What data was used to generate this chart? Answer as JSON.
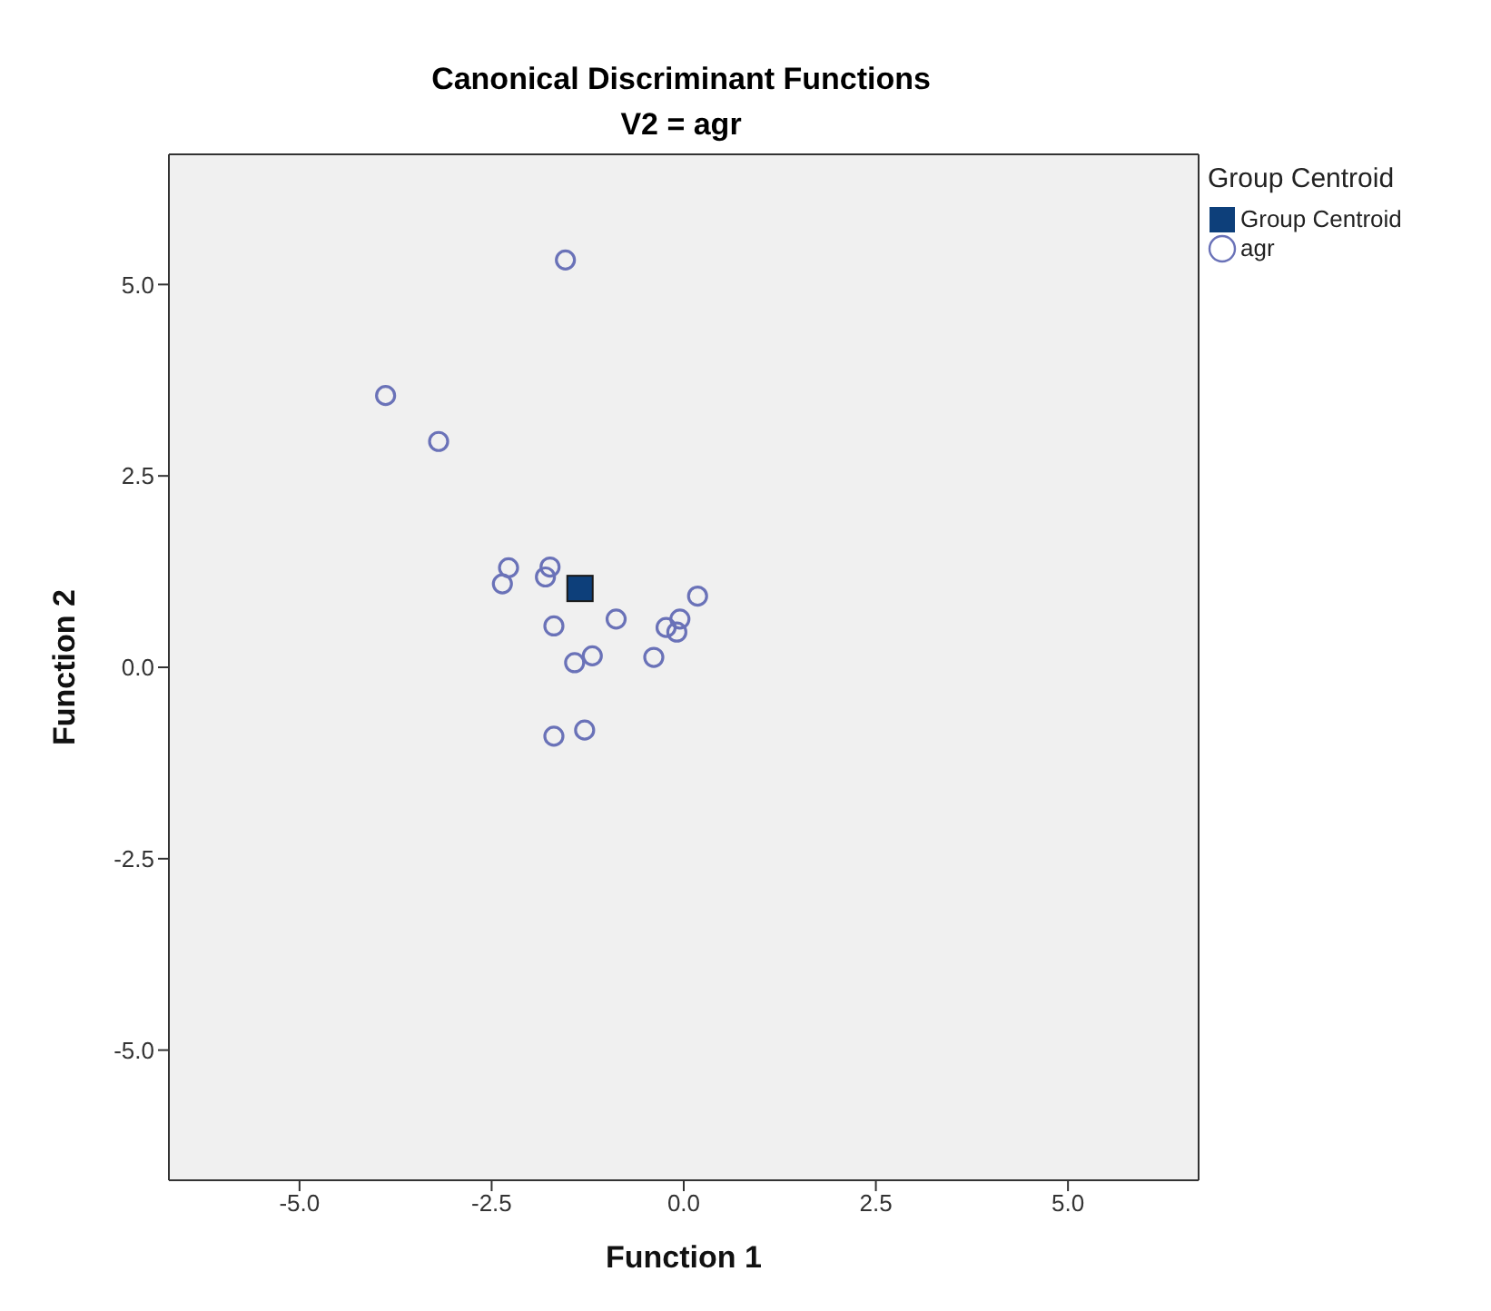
{
  "chart_data": {
    "type": "scatter",
    "title": "Canonical Discriminant Functions",
    "subtitle": "V2 = agr",
    "xlabel": "Function 1",
    "ylabel": "Function 2",
    "legend_title": "Group Centroid",
    "legend": "top right",
    "xlim": [
      -6.7,
      6.7
    ],
    "ylim": [
      -6.7,
      6.7
    ],
    "xticks": [
      {
        "value": -5,
        "label": "-5.0"
      },
      {
        "value": -2.5,
        "label": "-2.5"
      },
      {
        "value": 0,
        "label": "0.0"
      },
      {
        "value": 2.5,
        "label": "2.5"
      },
      {
        "value": 5,
        "label": "5.0"
      }
    ],
    "yticks": [
      {
        "value": -5,
        "label": "-5.0"
      },
      {
        "value": -2.5,
        "label": "-2.5"
      },
      {
        "value": 0,
        "label": "0.0"
      },
      {
        "value": 2.5,
        "label": "2.5"
      },
      {
        "value": 5,
        "label": "5.0"
      }
    ],
    "series": [
      {
        "name": "Group Centroid",
        "color": "#0d3f7a",
        "marker": "square",
        "x": [
          -1.35
        ],
        "values": [
          1.03
        ]
      },
      {
        "name": "agr",
        "color": "#6a72b8",
        "marker": "circle",
        "x": [
          -1.54,
          -3.88,
          -3.19,
          -2.28,
          -2.36,
          -1.74,
          -1.8,
          0.18,
          -0.88,
          -1.69,
          -0.23,
          -0.05,
          -0.09,
          -1.19,
          -1.42,
          -0.39,
          -1.29,
          -1.69
        ],
        "values": [
          5.32,
          3.55,
          2.95,
          1.3,
          1.09,
          1.31,
          1.18,
          0.93,
          0.63,
          0.54,
          0.52,
          0.63,
          0.46,
          0.15,
          0.06,
          0.13,
          -0.82,
          -0.9
        ]
      }
    ]
  }
}
